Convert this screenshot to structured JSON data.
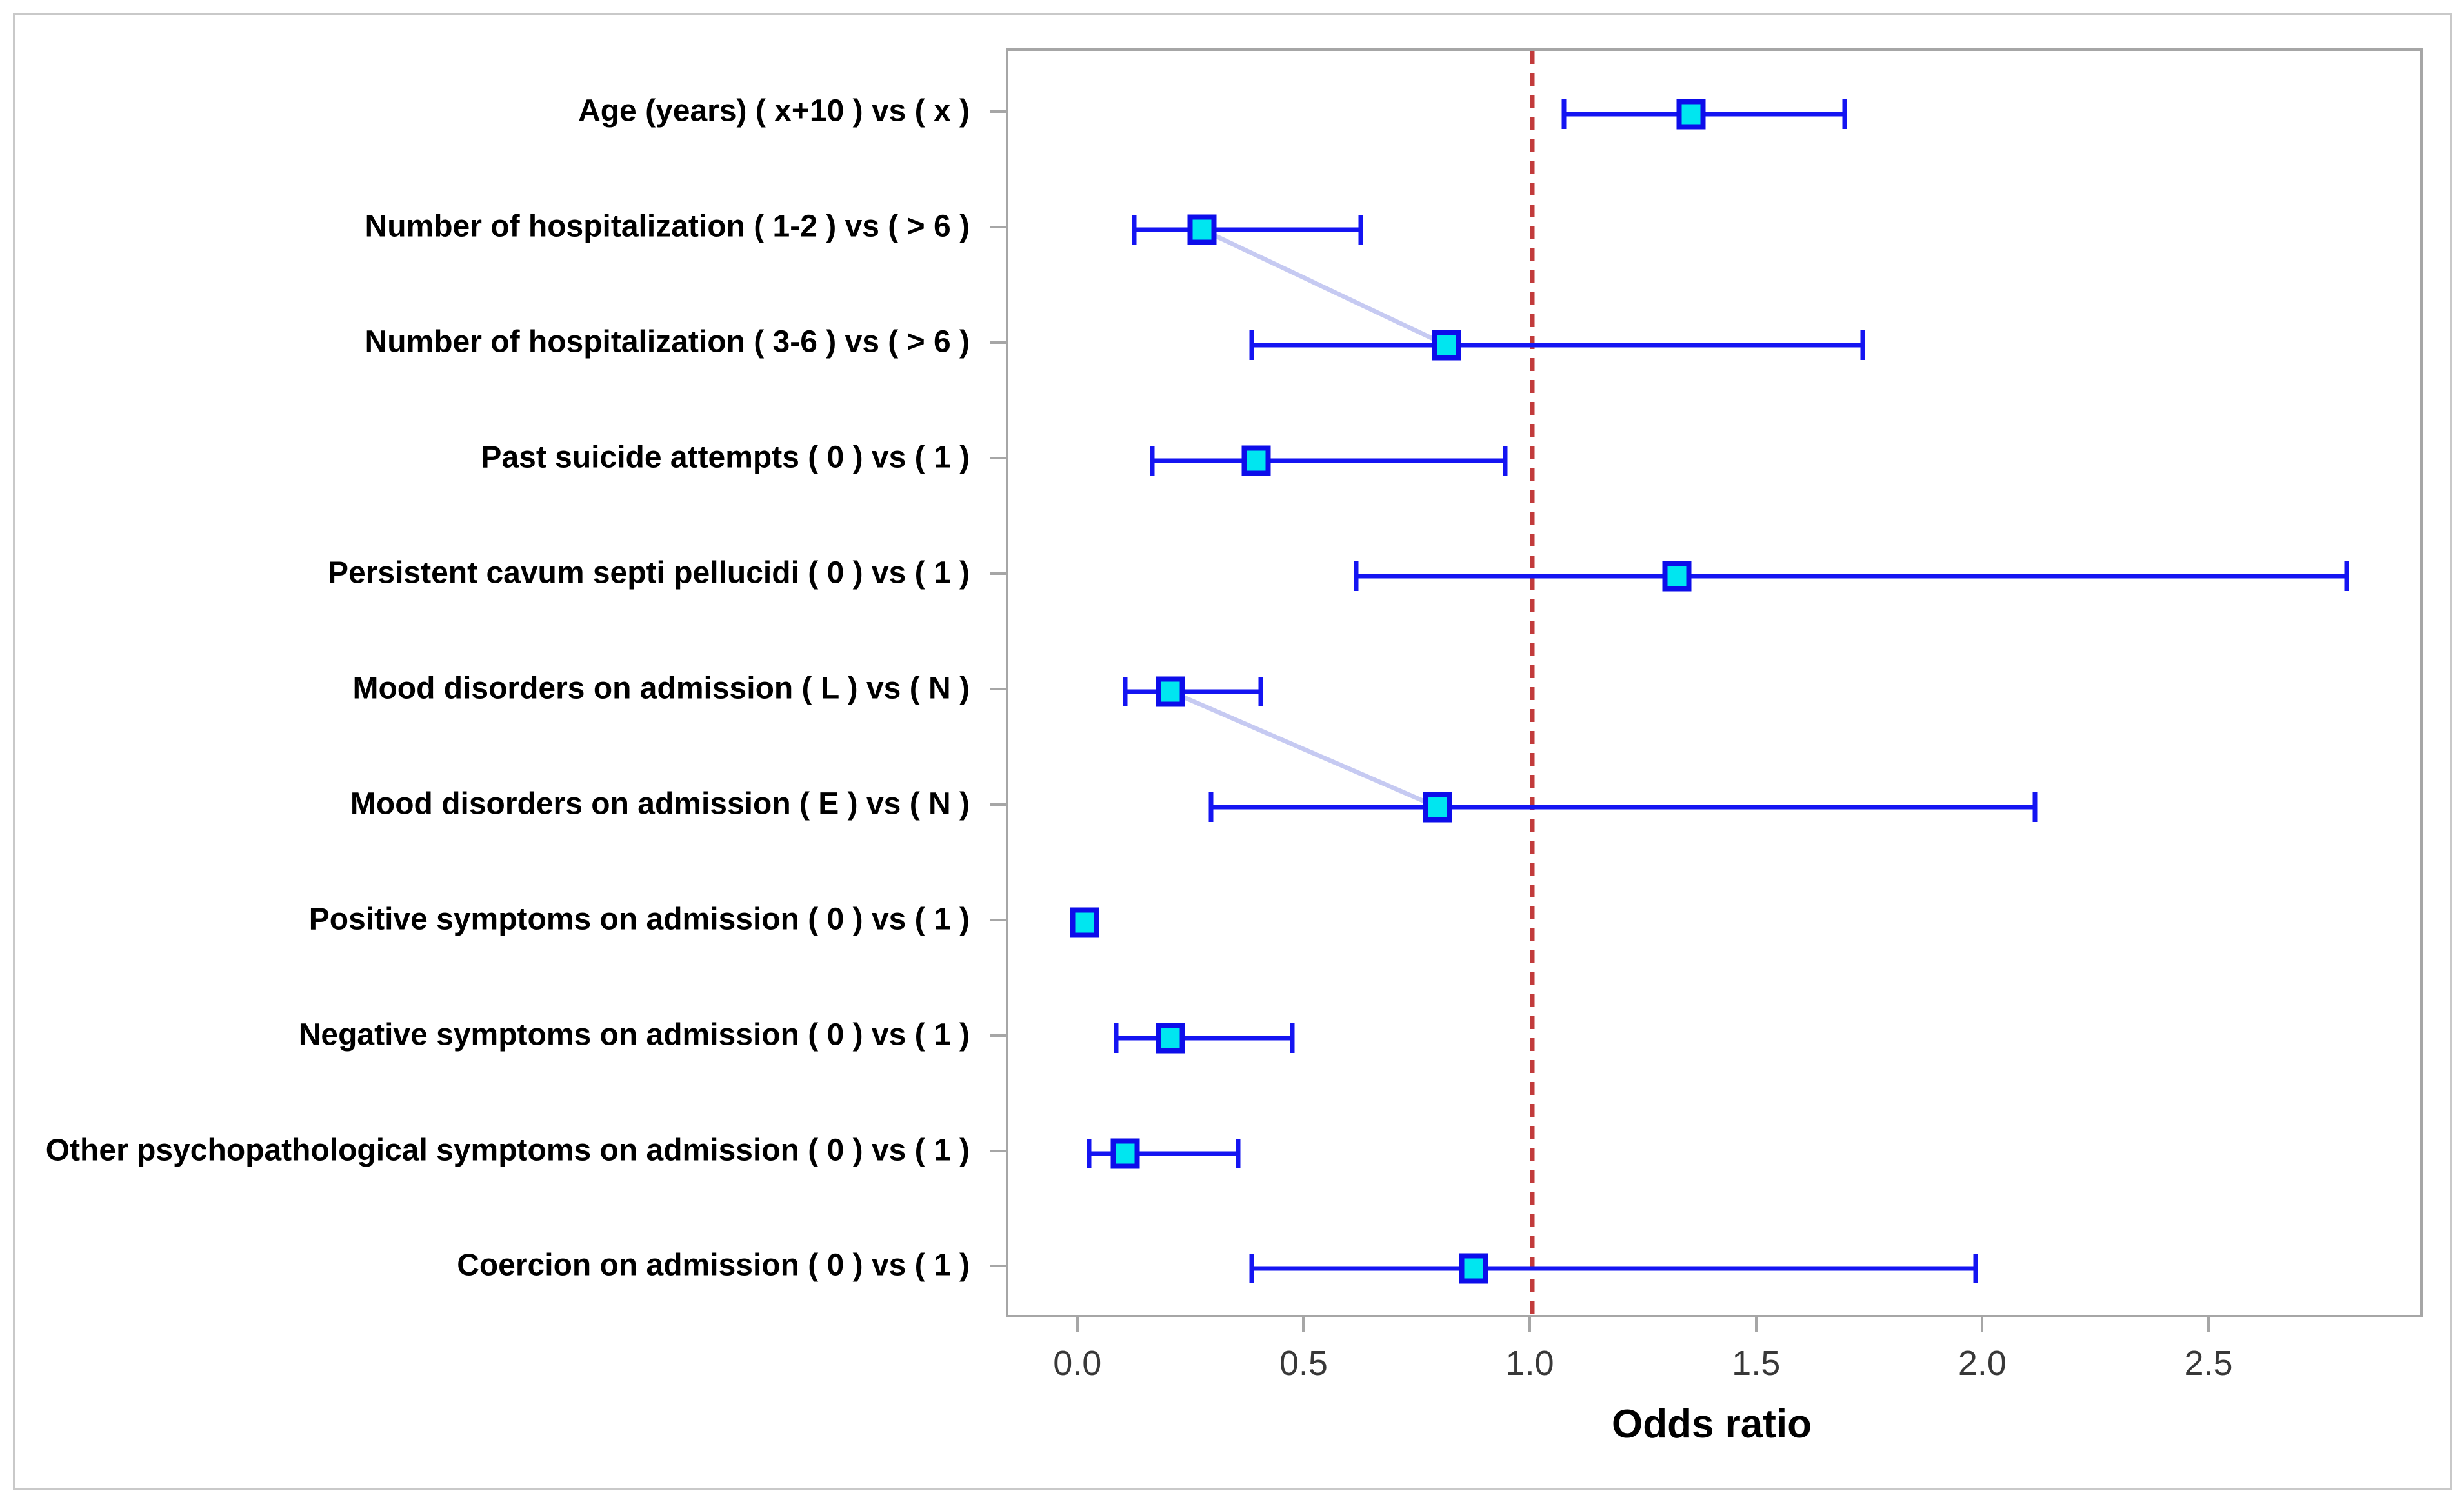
{
  "chart_data": {
    "type": "scatter",
    "subtype": "forest-plot",
    "title": "",
    "xlabel": "Odds ratio",
    "ylabel": "",
    "xlim": [
      -0.158,
      2.962
    ],
    "grid": false,
    "reference_line": {
      "x": 1.0,
      "style": "dashed",
      "color": "#c23b3b"
    },
    "xticks": [
      {
        "value": 0.0,
        "label": "0.0"
      },
      {
        "value": 0.5,
        "label": "0.5"
      },
      {
        "value": 1.0,
        "label": "1.0"
      },
      {
        "value": 1.5,
        "label": "1.5"
      },
      {
        "value": 2.0,
        "label": "2.0"
      },
      {
        "value": 2.5,
        "label": "2.5"
      }
    ],
    "rows": [
      {
        "label": "Age (years) ( x+10 )  vs  ( x )",
        "or": 1.35,
        "ci_low": 1.07,
        "ci_high": 1.69
      },
      {
        "label": "Number of hospitalization ( 1-2 )  vs  ( > 6 )",
        "or": 0.27,
        "ci_low": 0.12,
        "ci_high": 0.62
      },
      {
        "label": "Number of hospitalization ( 3-6 )  vs  ( > 6 )",
        "or": 0.81,
        "ci_low": 0.38,
        "ci_high": 1.73
      },
      {
        "label": "Past suicide attempts ( 0 )  vs  ( 1 )",
        "or": 0.39,
        "ci_low": 0.16,
        "ci_high": 0.94
      },
      {
        "label": "Persistent cavum septi pellucidi ( 0 )  vs  ( 1 )",
        "or": 1.32,
        "ci_low": 0.61,
        "ci_high": 2.8
      },
      {
        "label": "Mood disorders on admission ( L )  vs  ( N )",
        "or": 0.2,
        "ci_low": 0.1,
        "ci_high": 0.4
      },
      {
        "label": "Mood disorders on admission ( E )  vs  ( N )",
        "or": 0.79,
        "ci_low": 0.29,
        "ci_high": 2.11
      },
      {
        "label": "Positive symptoms on admission ( 0 )  vs  ( 1 )",
        "or": 0.01,
        "ci_low": null,
        "ci_high": null
      },
      {
        "label": "Negative symptoms on admission ( 0 )  vs  ( 1 )",
        "or": 0.2,
        "ci_low": 0.08,
        "ci_high": 0.47
      },
      {
        "label": "Other psychopathological symptoms on admission ( 0 )  vs  ( 1 )",
        "or": 0.1,
        "ci_low": 0.02,
        "ci_high": 0.35
      },
      {
        "label": "Coercion on admission ( 0 )  vs  ( 1 )",
        "or": 0.87,
        "ci_low": 0.38,
        "ci_high": 1.98
      }
    ],
    "connectors": [
      {
        "from": 1,
        "to": 2
      },
      {
        "from": 5,
        "to": 6
      }
    ],
    "legend": null
  },
  "colors": {
    "marker_fill": "#00e6f0",
    "marker_border": "#0d0dea",
    "error_bar": "#1414f2",
    "reference_line": "#c23b3b",
    "connector": "#c6caf2",
    "plot_border": "#a6a6a6",
    "figure_border": "#c9c9c9",
    "label_text": "#000000",
    "tick_text": "#383838"
  }
}
